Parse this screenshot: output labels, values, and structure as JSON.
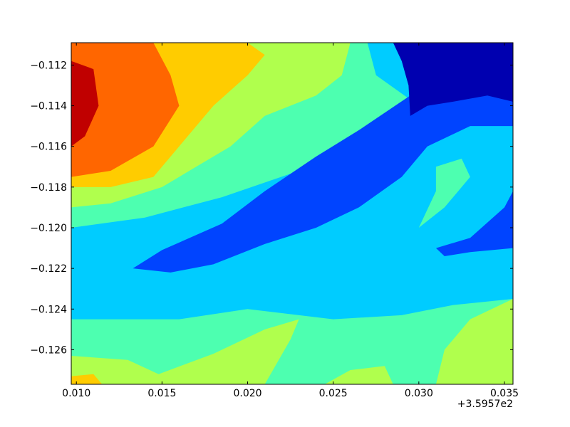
{
  "chart_data": {
    "type": "heatmap",
    "subtype": "filled-contour",
    "colormap": "jet",
    "title": "",
    "xlabel": "",
    "ylabel": "",
    "x_offset_label": "+3.5957e2",
    "xlim": [
      0.0097,
      0.0355
    ],
    "ylim": [
      -0.1277,
      -0.1109
    ],
    "x_ticks": [
      0.01,
      0.015,
      0.02,
      0.025,
      0.03,
      0.035
    ],
    "x_tick_labels": [
      "0.010",
      "0.015",
      "0.020",
      "0.025",
      "0.030",
      "0.035"
    ],
    "y_ticks": [
      -0.112,
      -0.114,
      -0.116,
      -0.118,
      -0.12,
      -0.122,
      -0.124,
      -0.126
    ],
    "y_tick_labels": [
      "−0.112",
      "−0.114",
      "−0.116",
      "−0.118",
      "−0.120",
      "−0.122",
      "−0.124",
      "−0.126"
    ],
    "grid": false,
    "legend": "none",
    "levels": [
      {
        "level": 1,
        "color": "#0000b0"
      },
      {
        "level": 2,
        "color": "#0044ff"
      },
      {
        "level": 3,
        "color": "#00ccff"
      },
      {
        "level": 4,
        "color": "#4dffb0"
      },
      {
        "level": 5,
        "color": "#b0ff4d"
      },
      {
        "level": 6,
        "color": "#ffcc00"
      },
      {
        "level": 7,
        "color": "#ff6600"
      },
      {
        "level": 8,
        "color": "#c00000"
      }
    ],
    "regions": [
      {
        "level": 4,
        "points": [
          [
            0.0097,
            -0.1109
          ],
          [
            0.0355,
            -0.1109
          ],
          [
            0.0355,
            -0.1277
          ],
          [
            0.0097,
            -0.1277
          ]
        ]
      },
      {
        "level": 3,
        "points": [
          [
            0.0097,
            -0.12
          ],
          [
            0.014,
            -0.1195
          ],
          [
            0.0185,
            -0.1185
          ],
          [
            0.023,
            -0.1172
          ],
          [
            0.027,
            -0.115
          ],
          [
            0.03,
            -0.1135
          ],
          [
            0.0355,
            -0.1118
          ],
          [
            0.0355,
            -0.1235
          ],
          [
            0.032,
            -0.1238
          ],
          [
            0.029,
            -0.1243
          ],
          [
            0.025,
            -0.1245
          ],
          [
            0.02,
            -0.124
          ],
          [
            0.016,
            -0.1245
          ],
          [
            0.0097,
            -0.1245
          ]
        ]
      },
      {
        "level": 3,
        "points": [
          [
            0.027,
            -0.1109
          ],
          [
            0.0355,
            -0.1109
          ],
          [
            0.0355,
            -0.113
          ],
          [
            0.03,
            -0.114
          ],
          [
            0.0275,
            -0.1125
          ]
        ]
      },
      {
        "level": 4,
        "points": [
          [
            0.031,
            -0.117
          ],
          [
            0.0325,
            -0.1166
          ],
          [
            0.033,
            -0.1175
          ],
          [
            0.0315,
            -0.119
          ],
          [
            0.03,
            -0.12
          ],
          [
            0.031,
            -0.1182
          ]
        ]
      },
      {
        "level": 2,
        "points": [
          [
            0.0133,
            -0.122
          ],
          [
            0.015,
            -0.1211
          ],
          [
            0.0185,
            -0.1198
          ],
          [
            0.021,
            -0.1182
          ],
          [
            0.024,
            -0.1165
          ],
          [
            0.0265,
            -0.1152
          ],
          [
            0.0295,
            -0.1135
          ],
          [
            0.0325,
            -0.1122
          ],
          [
            0.0355,
            -0.1118
          ],
          [
            0.0355,
            -0.115
          ],
          [
            0.033,
            -0.115
          ],
          [
            0.0305,
            -0.116
          ],
          [
            0.029,
            -0.1175
          ],
          [
            0.0265,
            -0.119
          ],
          [
            0.024,
            -0.12
          ],
          [
            0.021,
            -0.1208
          ],
          [
            0.018,
            -0.1218
          ],
          [
            0.0155,
            -0.1222
          ]
        ]
      },
      {
        "level": 2,
        "points": [
          [
            0.031,
            -0.121
          ],
          [
            0.033,
            -0.1205
          ],
          [
            0.035,
            -0.119
          ],
          [
            0.0355,
            -0.1182
          ],
          [
            0.0355,
            -0.121
          ],
          [
            0.033,
            -0.1212
          ],
          [
            0.0315,
            -0.1214
          ]
        ]
      },
      {
        "level": 1,
        "points": [
          [
            0.0285,
            -0.1109
          ],
          [
            0.0355,
            -0.1109
          ],
          [
            0.0355,
            -0.1138
          ],
          [
            0.034,
            -0.1135
          ],
          [
            0.032,
            -0.1138
          ],
          [
            0.0305,
            -0.114
          ],
          [
            0.0295,
            -0.1145
          ],
          [
            0.0294,
            -0.113
          ],
          [
            0.029,
            -0.1118
          ]
        ]
      },
      {
        "level": 5,
        "points": [
          [
            0.0097,
            -0.1109
          ],
          [
            0.026,
            -0.1109
          ],
          [
            0.0255,
            -0.1125
          ],
          [
            0.024,
            -0.1135
          ],
          [
            0.021,
            -0.1145
          ],
          [
            0.019,
            -0.116
          ],
          [
            0.017,
            -0.117
          ],
          [
            0.015,
            -0.118
          ],
          [
            0.012,
            -0.1188
          ],
          [
            0.0097,
            -0.119
          ]
        ]
      },
      {
        "level": 6,
        "points": [
          [
            0.0097,
            -0.1109
          ],
          [
            0.02,
            -0.1109
          ],
          [
            0.021,
            -0.1115
          ],
          [
            0.02,
            -0.1125
          ],
          [
            0.018,
            -0.114
          ],
          [
            0.016,
            -0.116
          ],
          [
            0.0145,
            -0.1175
          ],
          [
            0.012,
            -0.118
          ],
          [
            0.0097,
            -0.118
          ]
        ]
      },
      {
        "level": 7,
        "points": [
          [
            0.0097,
            -0.1109
          ],
          [
            0.0145,
            -0.1109
          ],
          [
            0.0155,
            -0.1125
          ],
          [
            0.016,
            -0.114
          ],
          [
            0.0145,
            -0.116
          ],
          [
            0.012,
            -0.1172
          ],
          [
            0.0097,
            -0.1175
          ]
        ]
      },
      {
        "level": 8,
        "points": [
          [
            0.0097,
            -0.1118
          ],
          [
            0.011,
            -0.1122
          ],
          [
            0.0113,
            -0.114
          ],
          [
            0.0105,
            -0.1155
          ],
          [
            0.0097,
            -0.116
          ]
        ]
      },
      {
        "level": 5,
        "points": [
          [
            0.0097,
            -0.1277
          ],
          [
            0.0097,
            -0.1263
          ],
          [
            0.013,
            -0.1265
          ],
          [
            0.0148,
            -0.1272
          ],
          [
            0.018,
            -0.1262
          ],
          [
            0.021,
            -0.125
          ],
          [
            0.023,
            -0.1245
          ],
          [
            0.0225,
            -0.1255
          ],
          [
            0.021,
            -0.1277
          ]
        ]
      },
      {
        "level": 5,
        "points": [
          [
            0.031,
            -0.1277
          ],
          [
            0.0315,
            -0.126
          ],
          [
            0.033,
            -0.1245
          ],
          [
            0.0355,
            -0.1235
          ],
          [
            0.0355,
            -0.1277
          ]
        ]
      },
      {
        "level": 5,
        "points": [
          [
            0.0245,
            -0.1277
          ],
          [
            0.026,
            -0.127
          ],
          [
            0.028,
            -0.1268
          ],
          [
            0.0285,
            -0.1277
          ]
        ]
      },
      {
        "level": 6,
        "points": [
          [
            0.0097,
            -0.1277
          ],
          [
            0.0097,
            -0.1273
          ],
          [
            0.011,
            -0.1272
          ],
          [
            0.0115,
            -0.1277
          ]
        ]
      }
    ]
  }
}
